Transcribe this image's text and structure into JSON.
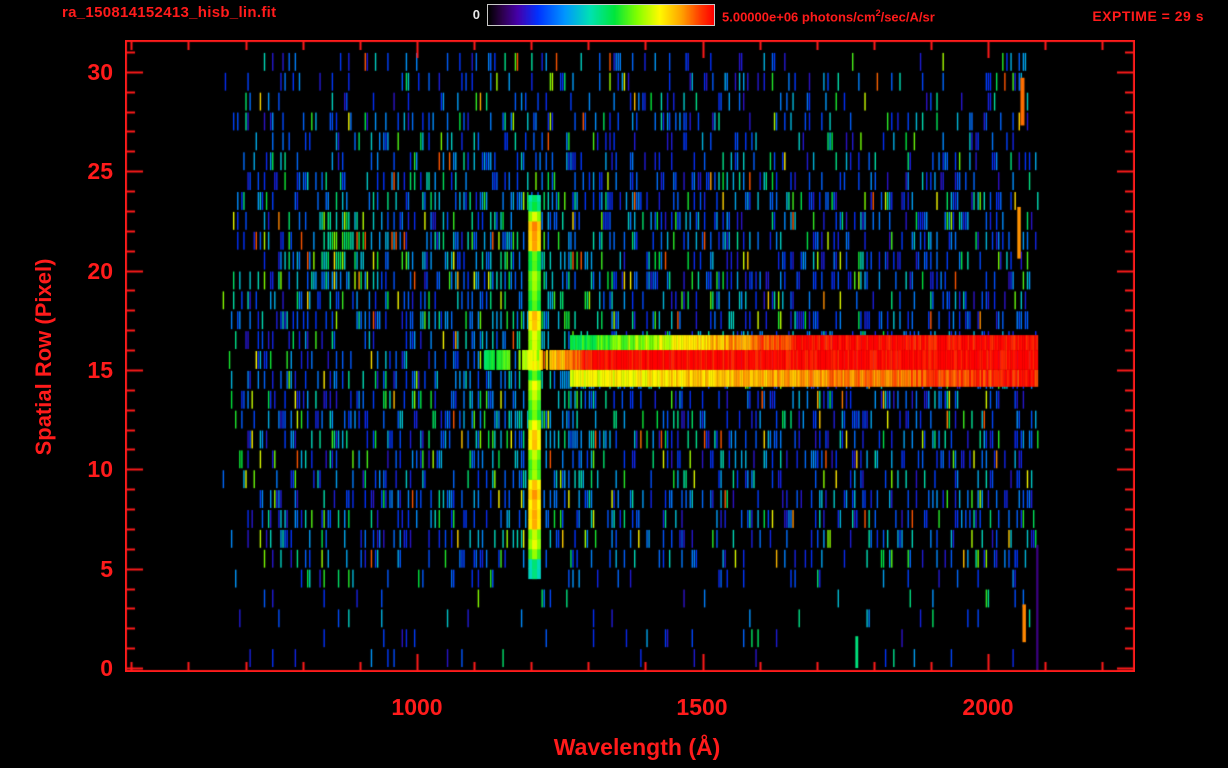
{
  "colors": {
    "accent_red": "#ff1b1b",
    "label_white": "#e8e8e8",
    "background": "#000000"
  },
  "header": {
    "filename": "ra_150814152413_hisb_lin.fit",
    "colorbar_min": "0",
    "colorbar_max_prefix": "5.00000e+06 photons/cm",
    "colorbar_max_sup": "2",
    "colorbar_max_suffix": "/sec/A/sr",
    "exptime": "EXPTIME = 29 s"
  },
  "axis": {
    "x_label": "Wavelength (Å)",
    "y_label": "Spatial Row (Pixel)"
  },
  "chart_data": {
    "type": "heatmap",
    "title": "ra_150814152413_hisb_lin.fit",
    "xlabel": "Wavelength (Å)",
    "ylabel": "Spatial Row (Pixel)",
    "xlim": [
      489,
      2257
    ],
    "ylim": [
      -0.2,
      31.6
    ],
    "x_ticks": [
      1000,
      1500,
      2000
    ],
    "x_tick_labels": [
      "1000",
      "1500",
      "2000"
    ],
    "x_minor_start": 500,
    "x_minor_end": 2200,
    "x_minor_step": 100,
    "y_ticks": [
      0,
      5,
      10,
      15,
      20,
      25,
      30
    ],
    "y_tick_labels": [
      "0",
      "5",
      "10",
      "15",
      "20",
      "25",
      "30"
    ],
    "y_minor_step": 1,
    "background": "#000000",
    "colorbar": {
      "min": 0,
      "max": 5000000,
      "units": "photons/cm^2/sec/A/sr",
      "colormap": "rainbow"
    },
    "exptime_s": 29,
    "colormap_stops": [
      [
        0.0,
        0,
        0,
        0
      ],
      [
        0.06,
        45,
        0,
        75
      ],
      [
        0.13,
        70,
        0,
        170
      ],
      [
        0.22,
        0,
        50,
        255
      ],
      [
        0.34,
        0,
        150,
        255
      ],
      [
        0.45,
        0,
        225,
        180
      ],
      [
        0.56,
        0,
        230,
        60
      ],
      [
        0.66,
        130,
        255,
        0
      ],
      [
        0.76,
        255,
        250,
        0
      ],
      [
        0.86,
        255,
        160,
        0
      ],
      [
        0.94,
        255,
        60,
        0
      ],
      [
        1.0,
        255,
        0,
        0
      ]
    ],
    "noise": {
      "seed": 42,
      "col_width_A": 3.6,
      "lambda_range": [
        660,
        2092
      ],
      "row_range": [
        0,
        30
      ],
      "base_density": 0.32,
      "min_v": 0.16,
      "exp_scale": 0.17
    },
    "row_profile": [
      [
        0,
        0.1
      ],
      [
        2,
        0.14
      ],
      [
        4,
        0.3
      ],
      [
        5,
        0.6
      ],
      [
        7,
        0.9
      ],
      [
        12,
        1.0
      ],
      [
        18,
        1.0
      ],
      [
        24,
        0.85
      ],
      [
        26,
        0.6
      ],
      [
        28,
        0.55
      ],
      [
        30,
        0.5
      ]
    ],
    "col_profile": [
      [
        655,
        0.1
      ],
      [
        690,
        0.8
      ],
      [
        760,
        1.0
      ],
      [
        1950,
        1.0
      ],
      [
        2070,
        0.95
      ],
      [
        2085,
        0.4
      ],
      [
        2092,
        0.05
      ]
    ],
    "blobs": [
      {
        "lambda": 870,
        "row": 21,
        "sig_l": 50,
        "sig_r": 1.6,
        "boost": 2.0,
        "vboost": 0.3
      },
      {
        "lambda": 1210,
        "row": 15,
        "sig_l": 90,
        "sig_r": 8,
        "boost": 1.5,
        "vboost": 0.12
      }
    ],
    "emission_line": {
      "lambda": 1206,
      "width_A": 22,
      "row_range": [
        4.5,
        23.8
      ],
      "base_v": 0.64,
      "hot_rows": [
        [
          20.8,
          22.6,
          0.8
        ],
        [
          7.0,
          9.4,
          0.78
        ],
        [
          16.8,
          17.6,
          0.74
        ],
        [
          11.0,
          12.0,
          0.72
        ]
      ]
    },
    "trace": {
      "bands": [
        {
          "rows": [
            15.0,
            16.0
          ],
          "lambda_range": [
            1118,
            2085
          ],
          "ramp_to": 1310,
          "v_start": 0.52,
          "v_end": 1.0,
          "jitter": 0.05,
          "sparse_until": 1240
        },
        {
          "rows": [
            16.0,
            16.75
          ],
          "lambda_range": [
            1268,
            2085
          ],
          "ramp_to": 1680,
          "v_start": 0.55,
          "v_end": 1.0,
          "jitter": 0.06,
          "sparse_until": 0
        },
        {
          "rows": [
            14.15,
            15.0
          ],
          "lambda_range": [
            1268,
            2085
          ],
          "ramp_to": 2060,
          "v_start": 0.74,
          "v_end": 0.97,
          "jitter": 0.05,
          "sparse_until": 0
        }
      ]
    },
    "marks": [
      {
        "lambda": 1770,
        "rows": [
          0,
          1.6
        ],
        "v": 0.5,
        "width_A": 5
      },
      {
        "lambda": 2060,
        "rows": [
          27.3,
          29.7
        ],
        "v": 0.9,
        "width_A": 7
      },
      {
        "lambda": 2054,
        "rows": [
          20.6,
          23.2
        ],
        "v": 0.87,
        "width_A": 6
      },
      {
        "lambda": 2063,
        "rows": [
          1.3,
          3.2
        ],
        "v": 0.88,
        "width_A": 6
      },
      {
        "lambda": 2086,
        "rows": [
          -0.1,
          6.2
        ],
        "v": 0.1,
        "width_A": 4
      }
    ]
  }
}
